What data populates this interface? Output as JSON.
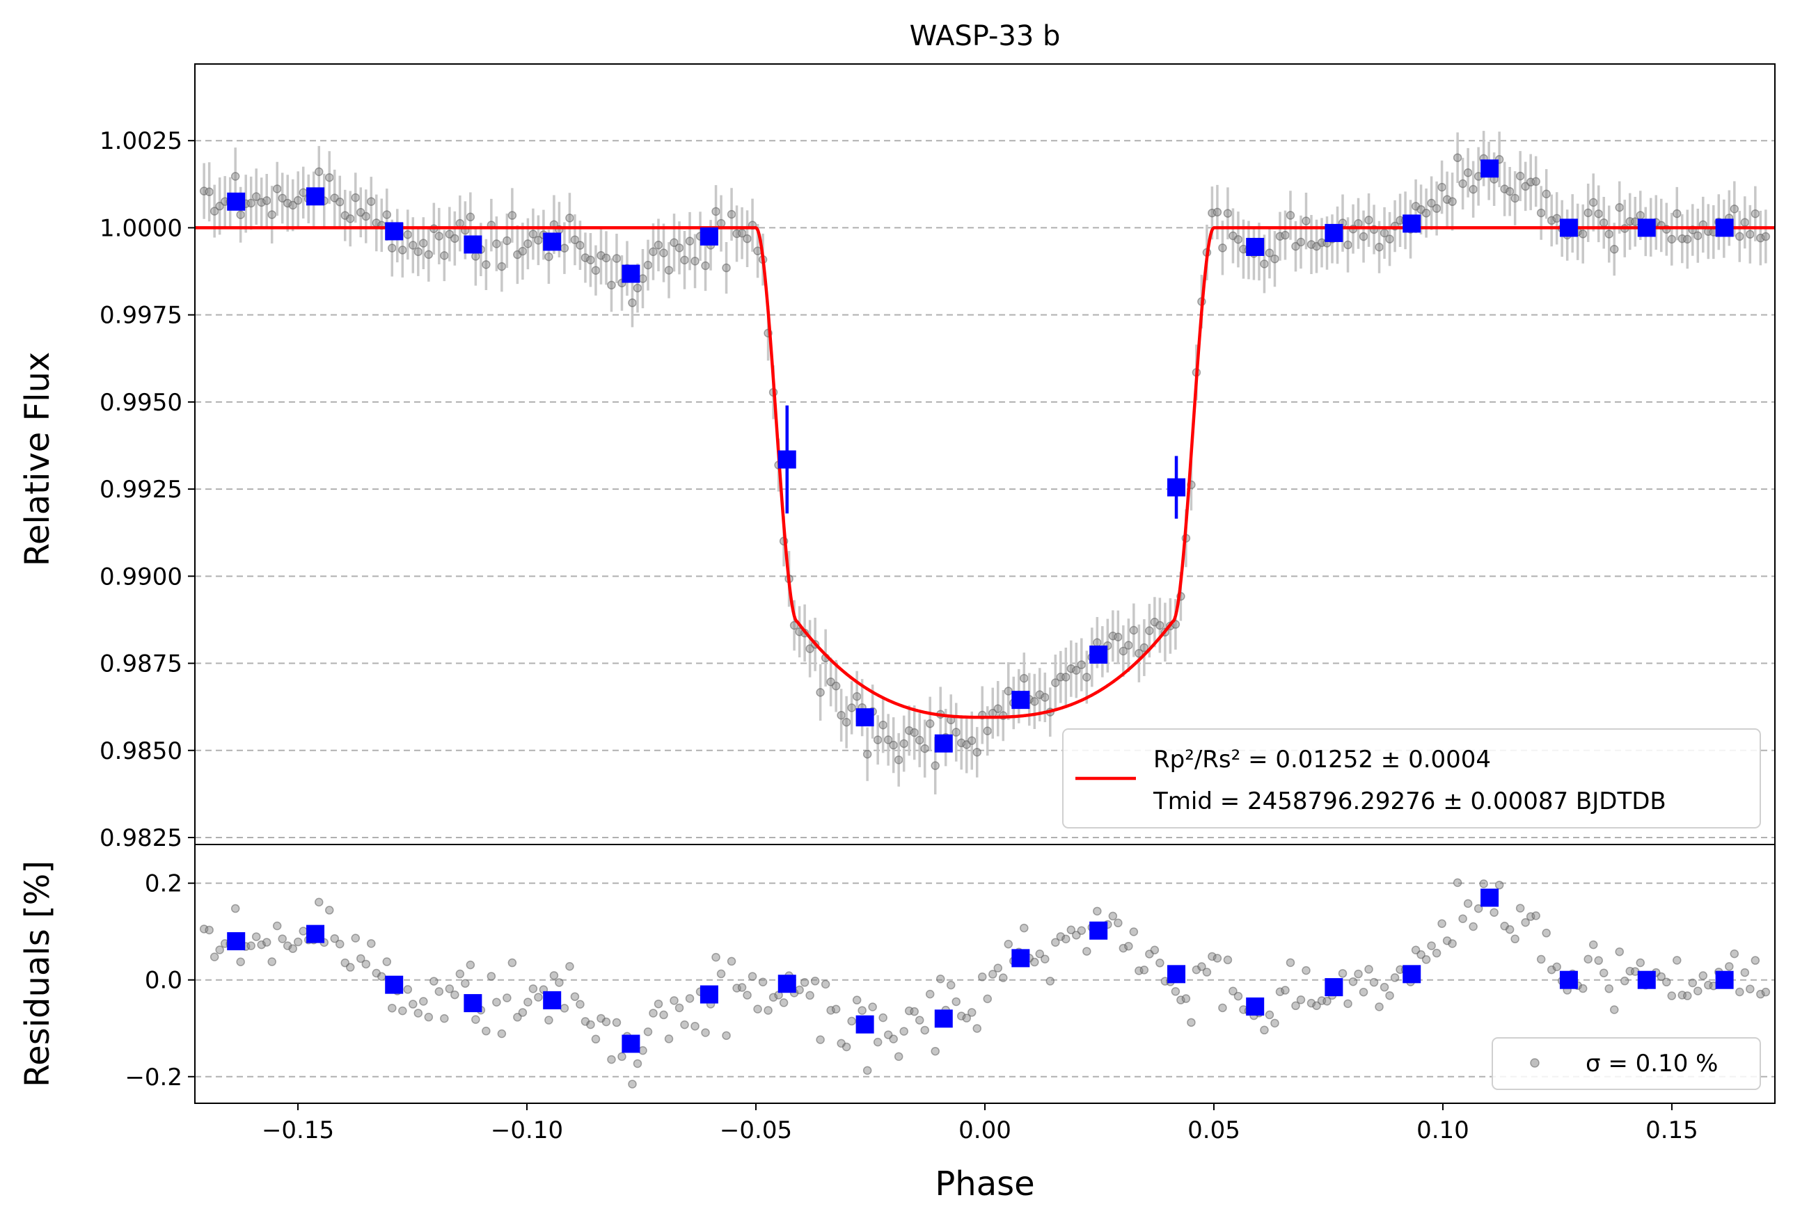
{
  "chart_data": [
    {
      "panel": "transit",
      "type": "scatter",
      "title": "WASP-33 b",
      "xlabel": "",
      "ylabel": "Relative Flux",
      "xlim": [
        -0.1725,
        0.1725
      ],
      "ylim": [
        0.9823,
        1.0047
      ],
      "yticks": [
        0.9825,
        0.985,
        0.9875,
        0.99,
        0.9925,
        0.995,
        0.9975,
        1.0,
        1.0025
      ],
      "ytick_labels": [
        "0.9825",
        "0.9850",
        "0.9875",
        "0.9900",
        "0.9925",
        "0.9950",
        "0.9975",
        "1.0000",
        "1.0025"
      ],
      "grid": "horizontal dashed",
      "legend_position": "lower-right",
      "colors": {
        "raw": "#808080",
        "binned": "#0000ff",
        "model": "#ff0000",
        "errorbar": "#c8c8c8"
      },
      "model": {
        "name_lines": [
          "Rp²/Rs² = 0.01252 ± 0.0004",
          "Tmid = 2458796.29276 ± 0.00087 BJDTDB"
        ],
        "ingress_start": -0.05,
        "ingress_end": -0.041,
        "egress_start": 0.041,
        "egress_end": 0.05,
        "contact_flux": 0.9887,
        "center_flux": 0.98595,
        "baseline": 1.0
      },
      "binned": {
        "x": [
          -0.1635,
          -0.1462,
          -0.129,
          -0.1118,
          -0.0945,
          -0.0773,
          -0.0602,
          -0.0432,
          -0.0262,
          -0.009,
          0.0078,
          0.0248,
          0.0418,
          0.059,
          0.0762,
          0.0932,
          0.1102,
          0.1275,
          0.1445,
          0.1615
        ],
        "y": [
          1.00075,
          1.0009,
          0.9999,
          0.99952,
          0.9996,
          0.99868,
          0.99975,
          0.99335,
          0.98595,
          0.9852,
          0.98645,
          0.98775,
          0.99255,
          0.99945,
          0.99985,
          1.00012,
          1.0017,
          1.0,
          1.0,
          1.0
        ],
        "yerr": [
          0.0002,
          0.0002,
          0.0002,
          0.0002,
          0.0002,
          0.0002,
          0.0002,
          0.00155,
          0.0002,
          0.0002,
          0.0002,
          0.0002,
          0.0009,
          0.0002,
          0.0002,
          0.0002,
          0.0002,
          0.0002,
          0.0002,
          0.0002
        ]
      }
    },
    {
      "panel": "residuals",
      "type": "scatter",
      "title": "",
      "xlabel": "Phase",
      "ylabel": "Residuals [%]",
      "xlim": [
        -0.1725,
        0.1725
      ],
      "ylim": [
        -0.255,
        0.28
      ],
      "yticks": [
        -0.2,
        0.0,
        0.2
      ],
      "ytick_labels": [
        "−0.2",
        "0.0",
        "0.2"
      ],
      "xticks": [
        -0.15,
        -0.1,
        -0.05,
        0.0,
        0.05,
        0.1,
        0.15
      ],
      "xtick_labels": [
        "−0.15",
        "−0.10",
        "−0.05",
        "0.00",
        "0.05",
        "0.10",
        "0.15"
      ],
      "grid": "horizontal dashed",
      "legend_position": "lower-right",
      "legend": "σ = 0.10 %",
      "binned": {
        "x": [
          -0.1635,
          -0.1462,
          -0.129,
          -0.1118,
          -0.0945,
          -0.0773,
          -0.0602,
          -0.0432,
          -0.0262,
          -0.009,
          0.0078,
          0.0248,
          0.0418,
          0.059,
          0.0762,
          0.0932,
          0.1102,
          0.1275,
          0.1445,
          0.1615
        ],
        "y": [
          0.08,
          0.095,
          -0.01,
          -0.048,
          -0.042,
          -0.132,
          -0.03,
          -0.008,
          -0.092,
          -0.08,
          0.045,
          0.102,
          0.012,
          -0.055,
          -0.015,
          0.012,
          0.17,
          0.0,
          0.0,
          0.0
        ]
      }
    }
  ]
}
